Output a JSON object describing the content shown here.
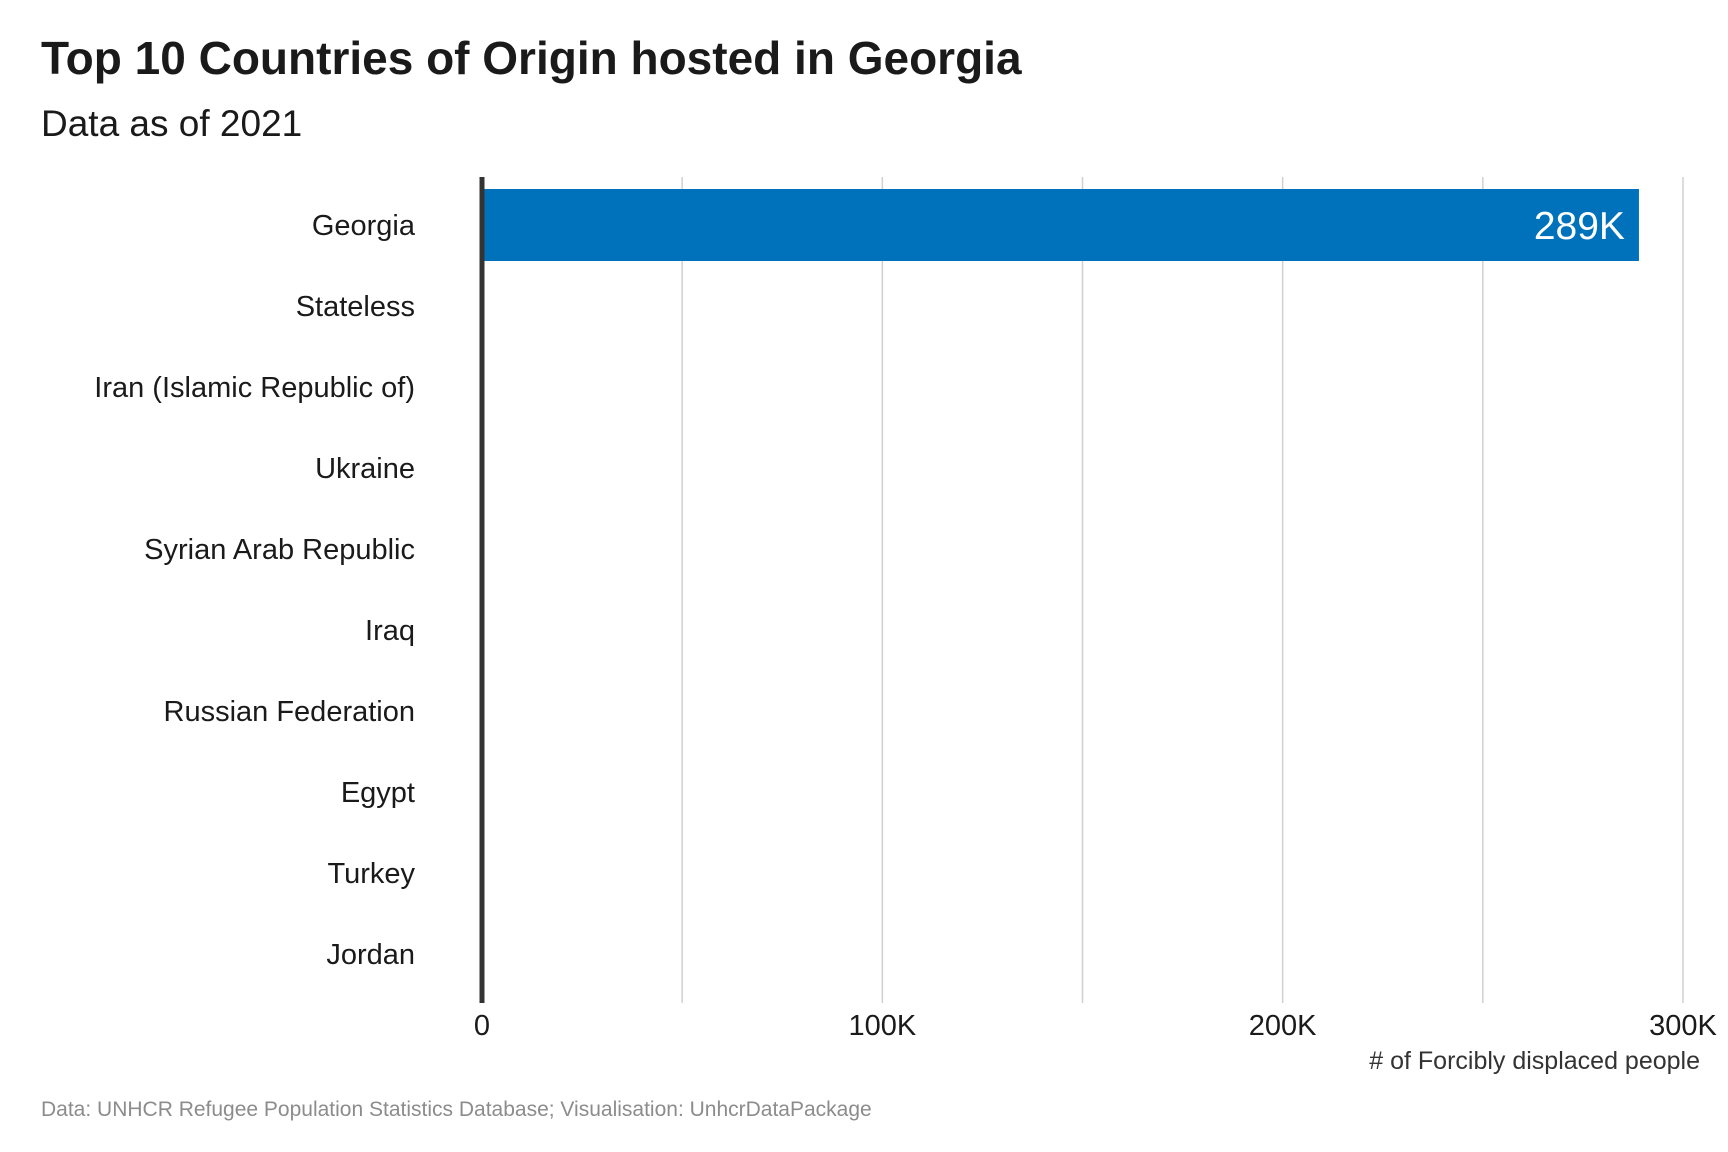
{
  "title": "Top 10 Countries of Origin hosted in Georgia",
  "subtitle": "Data as of 2021",
  "caption": "Data: UNHCR Refugee Population Statistics Database; Visualisation: UnhcrDataPackage",
  "colors": {
    "bar": "#0072bc",
    "grid": "#d0d0d0",
    "axis_line": "#333333"
  },
  "chart_data": {
    "type": "bar",
    "orientation": "horizontal",
    "title": "Top 10 Countries of Origin hosted in Georgia",
    "subtitle": "Data as of 2021",
    "categories": [
      "Georgia",
      "Stateless",
      "Iran (Islamic Republic of)",
      "Ukraine",
      "Syrian Arab Republic",
      "Iraq",
      "Russian Federation",
      "Egypt",
      "Turkey",
      "Jordan"
    ],
    "values": [
      289000,
      400,
      300,
      200,
      150,
      100,
      80,
      60,
      50,
      40
    ],
    "data_labels": [
      "289K"
    ],
    "xlabel": "# of Forcibly displaced people",
    "ylabel": "",
    "xlim": [
      0,
      300000
    ],
    "xticks": [
      0,
      100000,
      200000,
      300000
    ],
    "xtick_labels": [
      "0",
      "100K",
      "200K",
      "300K"
    ],
    "grid": "vertical",
    "legend": "none"
  }
}
